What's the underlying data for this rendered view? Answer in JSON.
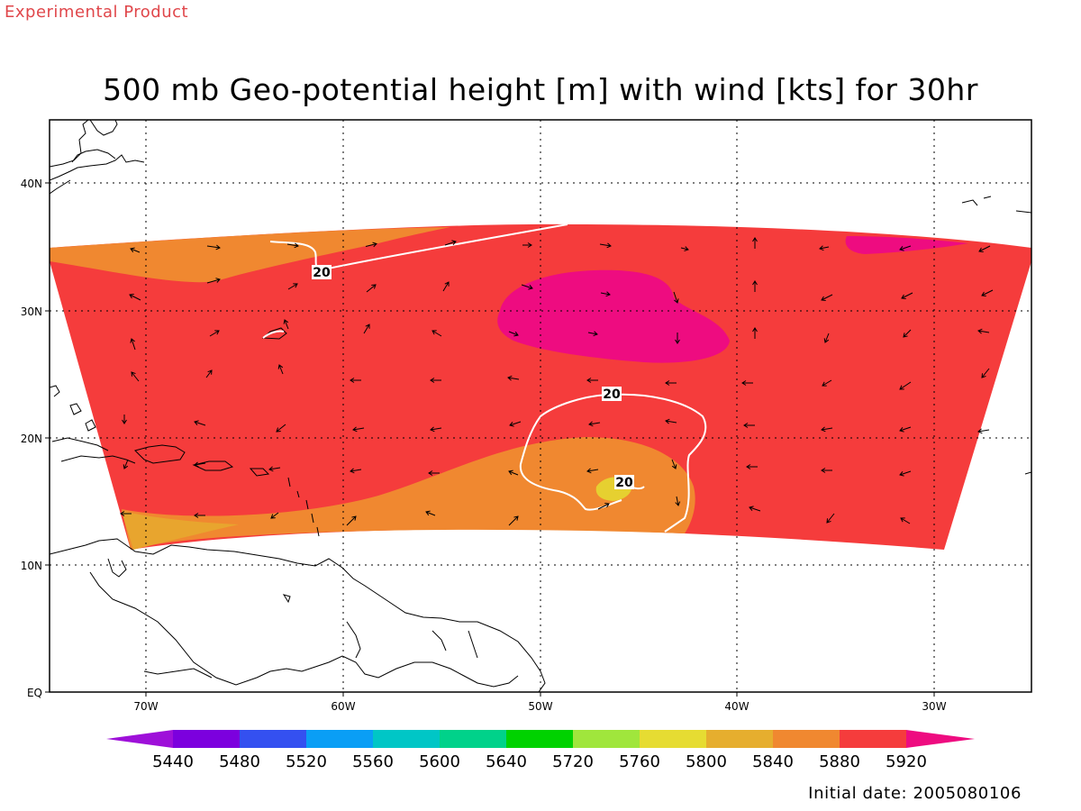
{
  "header": {
    "product_label": "Experimental Product",
    "title": "500 mb Geo-potential height [m] with wind [kts] for 30hr"
  },
  "footer": {
    "initial_date": "Initial date: 2005080106"
  },
  "map": {
    "lat_labels": [
      "40N",
      "30N",
      "20N",
      "10N",
      "EQ"
    ],
    "lon_labels": [
      "70W",
      "60W",
      "50W",
      "40W",
      "30W"
    ],
    "contour_labels": [
      "20",
      "20",
      "20"
    ],
    "fill_colors": {
      "c5840": "#e8a52e",
      "c5880": "#f08830",
      "c5920": "#f53c3c",
      "c5960": "#ee0c80",
      "c5800": "#e6d030"
    }
  },
  "colorbar": {
    "levels": [
      "5440",
      "5480",
      "5520",
      "5560",
      "5600",
      "5640",
      "5720",
      "5760",
      "5800",
      "5840",
      "5880",
      "5920"
    ],
    "colors": [
      "#9e10d9",
      "#7c00de",
      "#3450f0",
      "#0a9ef5",
      "#00c6c6",
      "#00d28a",
      "#00d200",
      "#a0e63c",
      "#e6dc32",
      "#e6ae2e",
      "#f08830",
      "#f53c3c",
      "#ee0c80"
    ]
  }
}
